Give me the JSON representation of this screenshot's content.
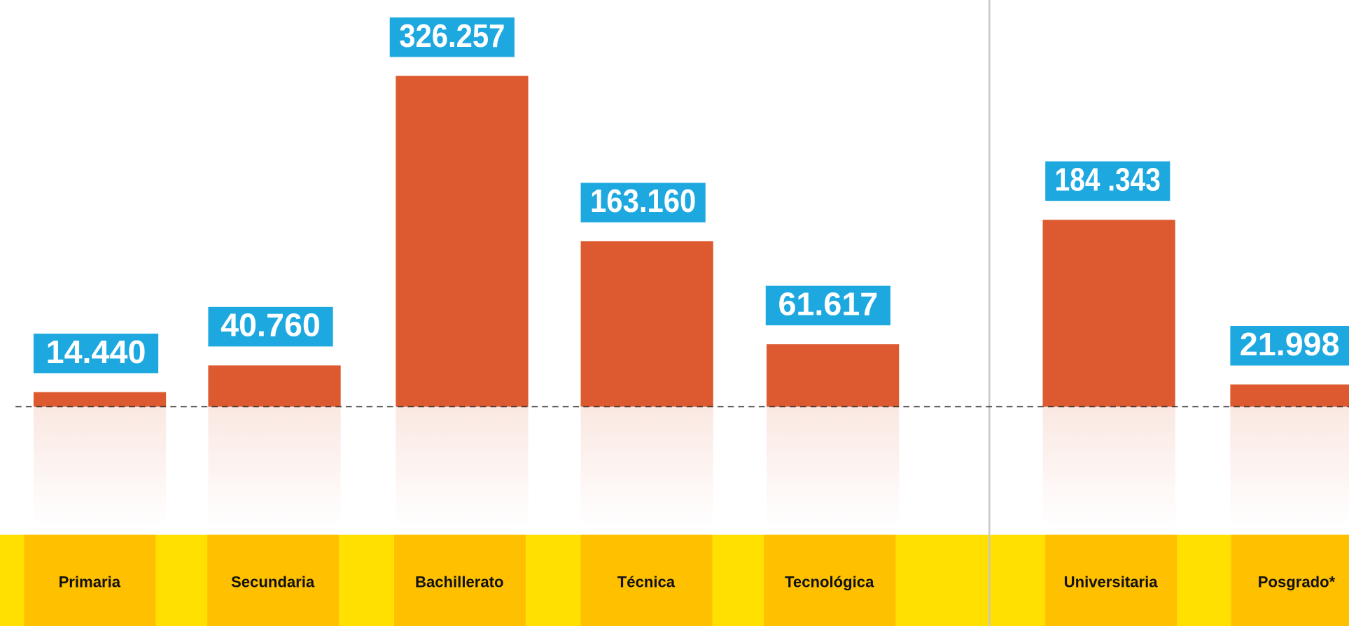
{
  "chart_data": {
    "type": "bar",
    "categories": [
      "Primaria",
      "Secundaria",
      "Bachillerato",
      "Técnica",
      "Tecnológica",
      "Universitaria",
      "Posgrado*"
    ],
    "values": [
      14440,
      40760,
      326257,
      163160,
      61617,
      184343,
      21998
    ],
    "value_labels": [
      "14.440",
      "40.760",
      "326.257",
      "163.160",
      "61.617",
      "184 .343",
      "21.998"
    ],
    "color": "#dd5a30",
    "label_color": "#1ea8e0"
  }
}
